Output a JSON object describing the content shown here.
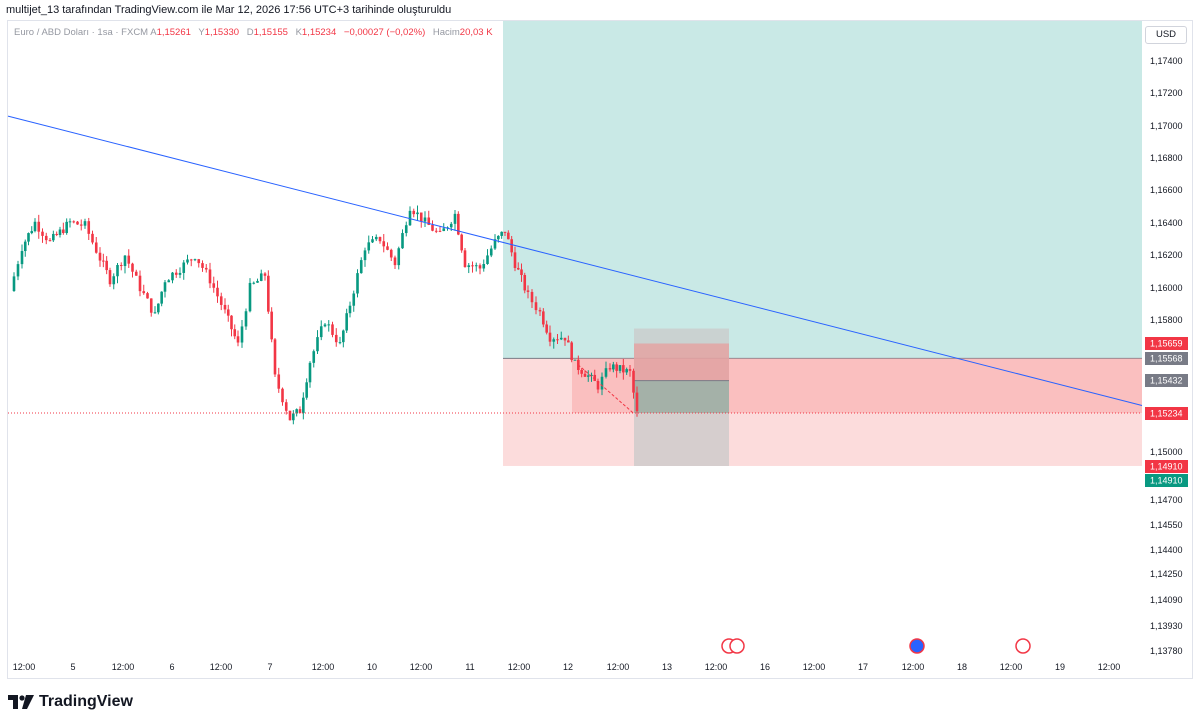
{
  "header": {
    "attribution": "multijet_13 tarafından TradingView.com ile Mar 12, 2026 17:56 UTC+3 tarihinde oluşturuldu"
  },
  "legend": {
    "symbol": "Euro / ABD Doları · 1sa · FXCM",
    "open_label": "A",
    "open": "1,15261",
    "high_label": "Y",
    "high": "1,15330",
    "low_label": "D",
    "low": "1,15155",
    "close_label": "K",
    "close": "1,15234",
    "change": "−0,00027 (−0,02%)",
    "volume_label": "Hacim",
    "volume": "20,03 K"
  },
  "currency": "USD",
  "brand": "TradingView",
  "colors": {
    "up": "#089981",
    "down": "#f23645",
    "trendline": "#2962ff",
    "profit_zone": "#b2dfdb",
    "loss_zone": "#f7c5c5"
  },
  "chart_data": {
    "type": "candlestick",
    "y_axis_ticks": [
      "1,17400",
      "1,17200",
      "1,17000",
      "1,16800",
      "1,16600",
      "1,16400",
      "1,16200",
      "1,16000",
      "1,15800",
      "1,15000",
      "1,14700",
      "1,14550",
      "1,14400",
      "1,14250",
      "1,14090",
      "1,13930",
      "1,13780"
    ],
    "x_axis_ticks": [
      "12:00",
      "5",
      "12:00",
      "6",
      "12:00",
      "7",
      "12:00",
      "10",
      "12:00",
      "11",
      "12:00",
      "12",
      "12:00",
      "13",
      "12:00",
      "16",
      "12:00",
      "17",
      "12:00",
      "18",
      "12:00",
      "19",
      "12:00"
    ],
    "price_tags": [
      {
        "label": "1,15659",
        "color": "#f23645"
      },
      {
        "label": "1,15568",
        "color": "#787b86"
      },
      {
        "label": "1,15432",
        "color": "#787b86"
      },
      {
        "label": "1,15234",
        "color": "#f23645"
      },
      {
        "label": "1,14910",
        "color": "#f23645"
      },
      {
        "label": "1,14910",
        "color": "#089981"
      }
    ],
    "trendline": {
      "from": 1.1705,
      "to": 1.1528
    },
    "long_position": {
      "entry": 1.15568,
      "target": 1.176,
      "stop": 1.1491
    },
    "short_position": {
      "entry": 1.15432,
      "target": 1.1491,
      "stop": 1.15659
    },
    "last_price": 1.15234,
    "events_row": [
      "us-flags-icon",
      "globe-icon",
      "us-flag-icon"
    ]
  }
}
